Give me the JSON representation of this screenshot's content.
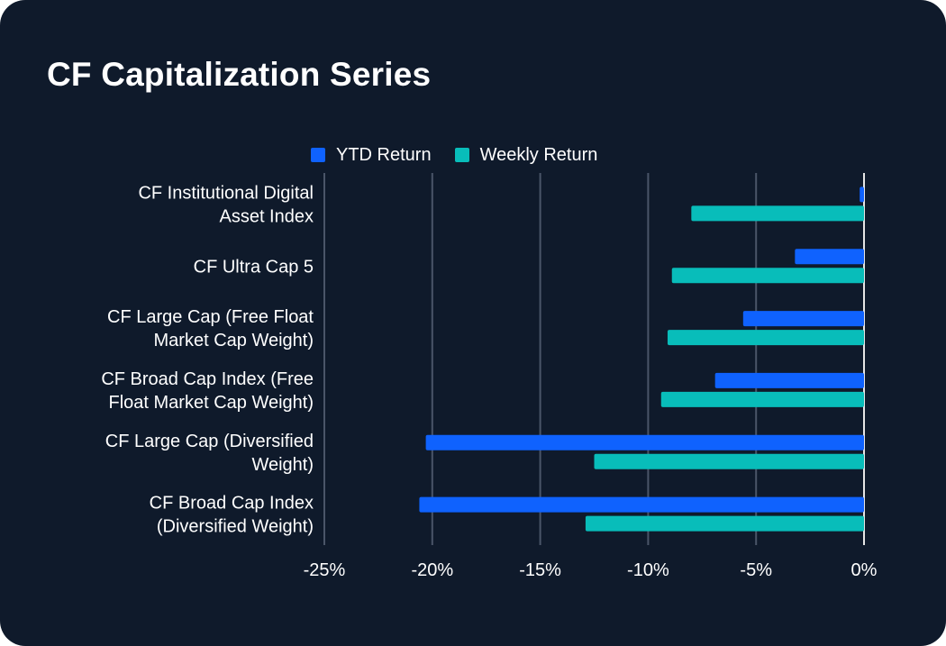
{
  "title": "CF Capitalization Series",
  "colors": {
    "background": "#0f1a2b",
    "ytd": "#0f62fe",
    "weekly": "#08bdba",
    "grid": "#4a5568",
    "zero": "#e6e6e6"
  },
  "chart_data": {
    "type": "bar",
    "orientation": "horizontal",
    "categories": [
      [
        "CF Institutional Digital",
        "Asset Index"
      ],
      [
        "CF Ultra Cap 5"
      ],
      [
        "CF Large Cap (Free Float",
        "Market Cap Weight)"
      ],
      [
        "CF Broad Cap Index (Free",
        "Float Market Cap Weight)"
      ],
      [
        "CF Large Cap (Diversified",
        "Weight)"
      ],
      [
        "CF Broad Cap Index",
        "(Diversified Weight)"
      ]
    ],
    "series": [
      {
        "name": "YTD Return",
        "color": "#0f62fe",
        "values": [
          -0.2,
          -3.2,
          -5.6,
          -6.9,
          -20.3,
          -20.6
        ]
      },
      {
        "name": "Weekly Return",
        "color": "#08bdba",
        "values": [
          -8.0,
          -8.9,
          -9.1,
          -9.4,
          -12.5,
          -12.9
        ]
      }
    ],
    "xlim": [
      -25,
      0
    ],
    "xticks": [
      -25,
      -20,
      -15,
      -10,
      -5,
      0
    ],
    "xtick_labels": [
      "-25%",
      "-20%",
      "-15%",
      "-10%",
      "-5%",
      "0%"
    ],
    "legend_position": "top",
    "grid": true
  }
}
